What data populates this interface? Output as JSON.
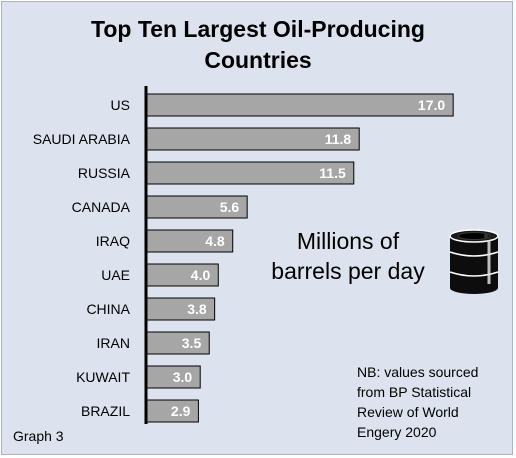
{
  "chart_data": {
    "type": "bar",
    "orientation": "horizontal",
    "title": [
      "Top Ten Largest Oil-Producing",
      "Countries"
    ],
    "categories": [
      "US",
      "SAUDI ARABIA",
      "RUSSIA",
      "CANADA",
      "IRAQ",
      "UAE",
      "CHINA",
      "IRAN",
      "KUWAIT",
      "BRAZIL"
    ],
    "values": [
      17.0,
      11.8,
      11.5,
      5.6,
      4.8,
      4.0,
      3.8,
      3.5,
      3.0,
      2.9
    ],
    "value_labels": [
      "17.0",
      "11.8",
      "11.5",
      "5.6",
      "4.8",
      "4.0",
      "3.8",
      "3.5",
      "3.0",
      "2.9"
    ],
    "xlim": [
      0,
      17.6
    ],
    "grid": false,
    "bar_color": "#a6a6a6",
    "bar_edge_color": "#000000",
    "label_color": "#ffffff"
  },
  "unit_label": [
    "Millions of",
    "barrels per day"
  ],
  "note": [
    "NB: values sourced",
    "from BP Statistical",
    "Review of World",
    "Engery 2020"
  ],
  "graph_label": "Graph 3",
  "colors": {
    "background": "#dce3ee",
    "axis": "#000000"
  },
  "icons": {
    "barrel": "oil-barrel-icon"
  }
}
